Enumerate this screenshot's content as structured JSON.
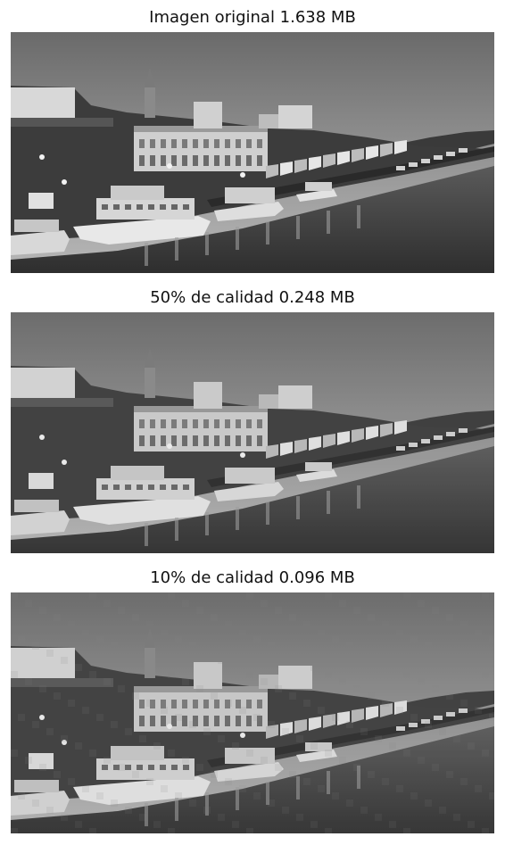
{
  "figure": {
    "panels": [
      {
        "title": "Imagen original 1.638 MB",
        "quality": "original"
      },
      {
        "title": "50% de calidad 0.248 MB",
        "quality": "50"
      },
      {
        "title": "10% de calidad 0.096 MB",
        "quality": "10"
      }
    ]
  }
}
